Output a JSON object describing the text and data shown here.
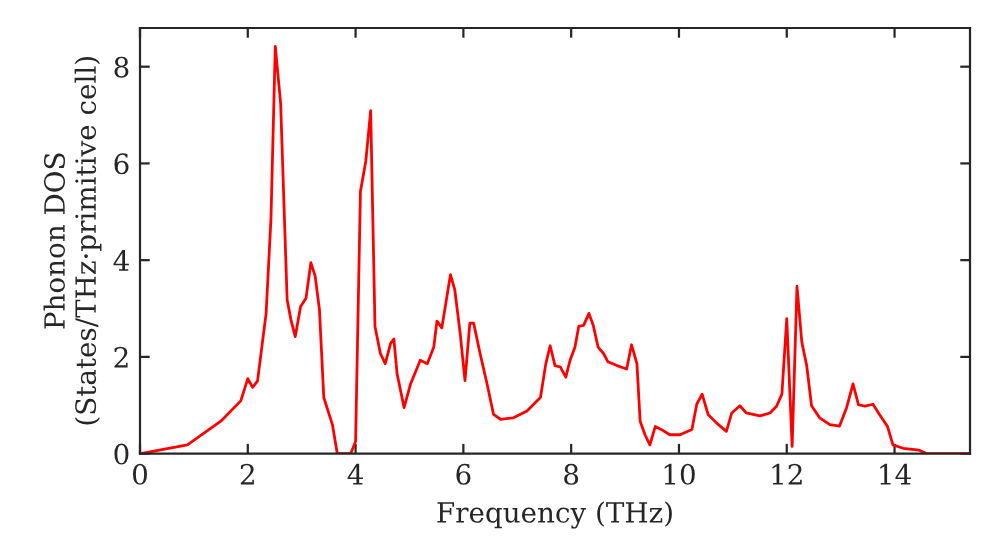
{
  "chart_data": {
    "type": "line",
    "xlabel": "Frequency (THz)",
    "ylabel": "Phonon DOS\n(States/THz·primitive cell)",
    "xlim": [
      0,
      15.4
    ],
    "ylim": [
      0,
      8.8
    ],
    "xticks": [
      0,
      2,
      4,
      6,
      8,
      10,
      12,
      14
    ],
    "yticks": [
      0,
      2,
      4,
      6,
      8
    ],
    "grid": false,
    "legend": false,
    "marker": "none",
    "line_style": "solid",
    "series": [
      {
        "color": "#ff0000",
        "x": [
          0.01,
          0.88,
          1.5,
          1.87,
          2.0,
          2.09,
          2.18,
          2.34,
          2.43,
          2.51,
          2.61,
          2.73,
          2.8,
          2.88,
          2.98,
          3.08,
          3.17,
          3.25,
          3.33,
          3.41,
          3.57,
          3.66,
          3.91,
          4.0,
          4.09,
          4.19,
          4.28,
          4.36,
          4.46,
          4.55,
          4.65,
          4.71,
          4.77,
          4.9,
          5.02,
          5.2,
          5.33,
          5.45,
          5.51,
          5.6,
          5.76,
          5.84,
          5.94,
          6.03,
          6.12,
          6.19,
          6.31,
          6.44,
          6.56,
          6.69,
          6.93,
          7.18,
          7.43,
          7.53,
          7.61,
          7.7,
          7.8,
          7.9,
          7.98,
          8.07,
          8.14,
          8.23,
          8.33,
          8.41,
          8.5,
          8.6,
          8.68,
          8.85,
          9.03,
          9.12,
          9.22,
          9.28,
          9.37,
          9.46,
          9.56,
          9.67,
          9.83,
          10.02,
          10.24,
          10.33,
          10.43,
          10.54,
          10.7,
          10.88,
          10.98,
          11.13,
          11.25,
          11.5,
          11.69,
          11.81,
          11.91,
          12.0,
          12.1,
          12.19,
          12.28,
          12.37,
          12.46,
          12.61,
          12.8,
          12.98,
          13.11,
          13.23,
          13.33,
          13.45,
          13.6,
          13.72,
          13.87,
          13.97,
          14.16,
          14.46,
          14.59,
          15.4
        ],
        "values": [
          0,
          0.18,
          0.67,
          1.09,
          1.55,
          1.37,
          1.5,
          2.9,
          4.86,
          8.42,
          7.23,
          3.18,
          2.77,
          2.42,
          3.04,
          3.21,
          3.95,
          3.67,
          2.97,
          1.16,
          0.6,
          0,
          0,
          0.25,
          5.42,
          6.05,
          7.09,
          2.63,
          2.07,
          1.86,
          2.28,
          2.37,
          1.65,
          0.95,
          1.44,
          1.93,
          1.86,
          2.2,
          2.74,
          2.6,
          3.7,
          3.39,
          2.49,
          1.51,
          2.7,
          2.7,
          2.07,
          1.44,
          0.81,
          0.71,
          0.74,
          0.88,
          1.16,
          1.86,
          2.23,
          1.82,
          1.79,
          1.58,
          1.93,
          2.2,
          2.63,
          2.65,
          2.9,
          2.65,
          2.2,
          2.07,
          1.9,
          1.82,
          1.75,
          2.25,
          1.86,
          0.67,
          0.39,
          0.18,
          0.56,
          0.5,
          0.39,
          0.39,
          0.5,
          1.02,
          1.23,
          0.81,
          0.63,
          0.46,
          0.84,
          0.99,
          0.84,
          0.78,
          0.84,
          0.98,
          1.23,
          2.79,
          0.15,
          3.46,
          2.3,
          1.82,
          0.99,
          0.74,
          0.6,
          0.57,
          0.95,
          1.44,
          1.01,
          0.98,
          1.02,
          0.81,
          0.56,
          0.18,
          0.11,
          0.07,
          0,
          0
        ]
      }
    ]
  }
}
